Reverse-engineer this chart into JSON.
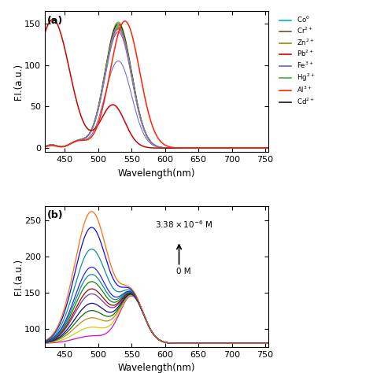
{
  "panel_a": {
    "xlabel": "Wavelength(nm)",
    "ylabel": "F.I.(a.u.)",
    "xlim": [
      420,
      755
    ],
    "ylim": [
      -5,
      165
    ],
    "xticks": [
      450,
      500,
      550,
      600,
      650,
      700,
      750
    ],
    "yticks": [
      0,
      50,
      100,
      150
    ],
    "legend_items": [
      {
        "label": "Co$^{0}$",
        "color": "#00b5b5"
      },
      {
        "label": "Cr$^{2+}$",
        "color": "#7b4f2e"
      },
      {
        "label": "Zn$^{2+}$",
        "color": "#8b8b00"
      },
      {
        "label": "Pb$^{2+}$",
        "color": "#cc0000"
      },
      {
        "label": "Fe$^{3+}$",
        "color": "#6060cc"
      },
      {
        "label": "Hg$^{2+}$",
        "color": "#44aa44"
      },
      {
        "label": "Al$^{3+}$",
        "color": "#ff2200"
      },
      {
        "label": "Cd$^{2+}$",
        "color": "#111111"
      }
    ],
    "normal_curves": [
      {
        "color": "#00b5b5",
        "peak_y": 148
      },
      {
        "color": "#7b4f2e",
        "peak_y": 144
      },
      {
        "color": "#8b8b00",
        "peak_y": 152
      },
      {
        "color": "#6060cc",
        "peak_y": 105
      },
      {
        "color": "#44aa44",
        "peak_y": 148
      },
      {
        "color": "#111111",
        "peak_y": 150
      },
      {
        "color": "#dd6600",
        "peak_y": 145
      },
      {
        "color": "#9933aa",
        "peak_y": 140
      },
      {
        "color": "#009988",
        "peak_y": 143
      },
      {
        "color": "#ccaa00",
        "peak_y": 147
      },
      {
        "color": "#ff6688",
        "peak_y": 143
      },
      {
        "color": "#4488cc",
        "peak_y": 146
      }
    ],
    "main_peak_x": 530,
    "main_peak_sigma": 20,
    "minor_peak_x": 470,
    "minor_peak_y": 8,
    "minor_peak_sigma": 12,
    "pb_peak1_x": 432,
    "pb_peak1_y": 155,
    "pb_peak1_sigma": 25,
    "pb_valley_x": 510,
    "pb_peak2_x": 522,
    "pb_peak2_y": 52,
    "pb_peak2_sigma": 18,
    "al_peak_x": 540,
    "al_peak_y": 153,
    "al_peak_sigma": 22
  },
  "panel_b": {
    "ylabel": "F.I.(a.u.)",
    "xlim": [
      420,
      755
    ],
    "ylim": [
      75,
      270
    ],
    "yticks": [
      100,
      150,
      200,
      250
    ],
    "xticks": [
      450,
      500,
      550,
      600,
      650,
      700,
      750
    ],
    "xlabel": "Wavelength(nm)",
    "peak1_x": 490,
    "peak1_sigma": 25,
    "peak2_x": 550,
    "peak2_sigma": 18,
    "peak2_y": 145,
    "baseline": 80,
    "n_curves": 13,
    "peak1_heights": [
      90,
      102,
      115,
      125,
      135,
      148,
      155,
      165,
      175,
      185,
      210,
      240,
      262
    ],
    "colors": [
      "#cc00cc",
      "#cccc00",
      "#b8860b",
      "#006400",
      "#00008b",
      "#7b2d8b",
      "#8b0000",
      "#008000",
      "#008b8b",
      "#1a1aff",
      "#008b8b",
      "#0000dd",
      "#ff6600"
    ]
  },
  "background_color": "#ffffff",
  "fig_width": 4.74,
  "fig_height": 4.74
}
